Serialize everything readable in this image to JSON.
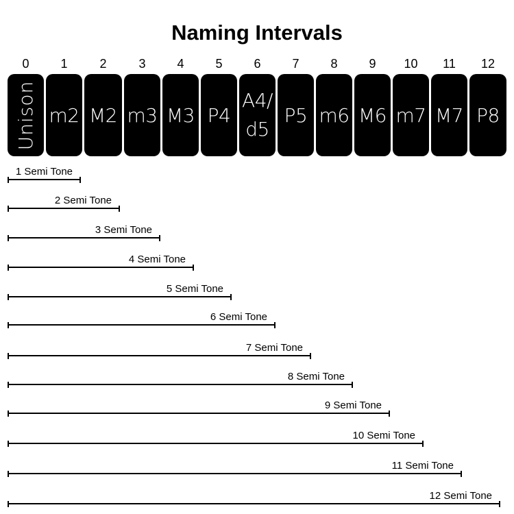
{
  "title": "Naming Intervals",
  "columns": [
    {
      "semitones": "0",
      "name": "Unison"
    },
    {
      "semitones": "1",
      "name": "m2"
    },
    {
      "semitones": "2",
      "name": "M2"
    },
    {
      "semitones": "3",
      "name": "m3"
    },
    {
      "semitones": "4",
      "name": "M3"
    },
    {
      "semitones": "5",
      "name": "P4"
    },
    {
      "semitones": "6",
      "name": "A4/ d5"
    },
    {
      "semitones": "7",
      "name": "P5"
    },
    {
      "semitones": "8",
      "name": "m6"
    },
    {
      "semitones": "9",
      "name": "M6"
    },
    {
      "semitones": "10",
      "name": "m7"
    },
    {
      "semitones": "11",
      "name": "M7"
    },
    {
      "semitones": "12",
      "name": "P8"
    }
  ],
  "spans": [
    {
      "label": "1 Semi Tone"
    },
    {
      "label": "2 Semi Tone"
    },
    {
      "label": "3 Semi Tone"
    },
    {
      "label": "4 Semi Tone"
    },
    {
      "label": "5 Semi Tone"
    },
    {
      "label": "6 Semi Tone"
    },
    {
      "label": "7 Semi Tone"
    },
    {
      "label": "8 Semi Tone"
    },
    {
      "label": "9 Semi Tone"
    },
    {
      "label": "10 Semi Tone"
    },
    {
      "label": "11 Semi Tone"
    },
    {
      "label": "12 Semi Tone"
    }
  ]
}
